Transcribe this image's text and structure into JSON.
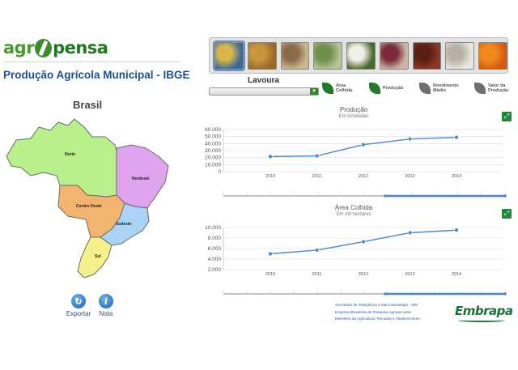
{
  "app": {
    "logo_part1": "agr",
    "logo_part2": "pensa",
    "title": "Produção Agrícola Municipal - IBGE"
  },
  "map": {
    "title": "Brasil",
    "regions": [
      {
        "id": "norte",
        "label": "Norte",
        "color": "#b8f08c"
      },
      {
        "id": "nordeste",
        "label": "Nordeste",
        "color": "#e0a3f0"
      },
      {
        "id": "centro-oeste",
        "label": "Centro-Oeste",
        "color": "#f2b46e"
      },
      {
        "id": "sudeste",
        "label": "Sudeste",
        "color": "#a9d3f7"
      },
      {
        "id": "sul",
        "label": "Sul",
        "color": "#f4f08a"
      }
    ]
  },
  "tools": {
    "export_label": "Exportar",
    "note_label": "Nota"
  },
  "crops": {
    "label": "Lavoura",
    "items": [
      {
        "name": "milho",
        "icon": "corn-icon",
        "color1": "#d8b64a",
        "color2": "#3a6a9a"
      },
      {
        "name": "amendoim",
        "icon": "peanut-icon",
        "color1": "#c9953d",
        "color2": "#9a6a2a"
      },
      {
        "name": "cana",
        "icon": "sugarcane-icon",
        "color1": "#8a6a4a",
        "color2": "#c8b890"
      },
      {
        "name": "algodao-campo",
        "icon": "cotton-field-icon",
        "color1": "#6f8f4f",
        "color2": "#b5c29a"
      },
      {
        "name": "algodao",
        "icon": "cotton-icon",
        "color1": "#f0f0ea",
        "color2": "#4a6a2a"
      },
      {
        "name": "feijao",
        "icon": "beans-icon",
        "color1": "#7a2a3a",
        "color2": "#c9b6a0"
      },
      {
        "name": "cafe",
        "icon": "coffee-icon",
        "color1": "#5a1e14",
        "color2": "#8a3a24"
      },
      {
        "name": "algodao-capulho",
        "icon": "cotton-boll-icon",
        "color1": "#b9b2a3",
        "color2": "#e8e6df"
      },
      {
        "name": "laranja",
        "icon": "orange-icon",
        "color1": "#f08a1e",
        "color2": "#d45a0e"
      }
    ],
    "select_value": ""
  },
  "metrics": [
    {
      "line1": "Área",
      "line2": "Colhida",
      "active": true
    },
    {
      "line1": "Produção",
      "line2": "",
      "active": true
    },
    {
      "line1": "Rendimento",
      "line2": "Médio",
      "active": false
    },
    {
      "line1": "Valor da",
      "line2": "Produção",
      "active": false
    }
  ],
  "colors": {
    "series": "#4a86c8",
    "grid": "#dcdcdc",
    "active_leaf": "#1f7a2a",
    "inactive_leaf": "#6f6f6f",
    "title_blue": "#1d4f8a"
  },
  "chart_data": [
    {
      "type": "line",
      "title": "Produção",
      "subtitle": "Em toneladas",
      "x": [
        "2010",
        "2011",
        "2012",
        "2013",
        "2014"
      ],
      "series": [
        {
          "values": [
            21500,
            22500,
            38500,
            46500,
            49000
          ]
        }
      ],
      "y_ticks": [
        "60.000",
        "50.000",
        "40.000",
        "30.000",
        "20.000",
        "10.000",
        "0"
      ],
      "ylim": [
        0,
        60000
      ],
      "grid": true
    },
    {
      "type": "line",
      "title": "Área Colhida",
      "subtitle": "Em mil hectares",
      "x": [
        "2010",
        "2011",
        "2012",
        "2013",
        "2014"
      ],
      "series": [
        {
          "values": [
            5000,
            5700,
            7300,
            9000,
            9500
          ]
        }
      ],
      "y_ticks": [
        "10.000",
        "8.000",
        "6.000",
        "4.000",
        "2.000"
      ],
      "ylim": [
        2000,
        10000
      ],
      "grid": true
    }
  ],
  "footer": {
    "line1": "Secretaria de Inteligência e Macroestratégia - SIM",
    "line2": "Empresa Brasileira de Pesquisa Agropecuária",
    "line3": "Ministério da Agricultura, Pecuária e Abastecimento",
    "brand": "Embrapa"
  }
}
